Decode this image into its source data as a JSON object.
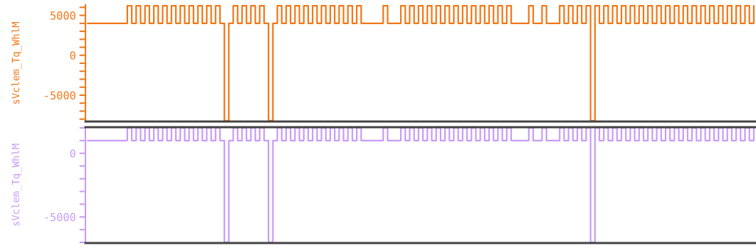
{
  "chart_data": [
    {
      "type": "step",
      "ylabel": "sVclem_Tq_WhlM",
      "tick_labels": "y",
      "grid": false,
      "legend": false,
      "categories": [
        null,
        null,
        null,
        null,
        null,
        null,
        null,
        null,
        null,
        null,
        null,
        null,
        null,
        null,
        null,
        null,
        null,
        null,
        null,
        null,
        null,
        null,
        null,
        null,
        null,
        null,
        null,
        null,
        null,
        null,
        null,
        null,
        null,
        null,
        null,
        null,
        null,
        null,
        null,
        null,
        null,
        null,
        null,
        null,
        null,
        null,
        null,
        null,
        null,
        null,
        null,
        null,
        null,
        null,
        null,
        null,
        null,
        null,
        null,
        null,
        null,
        null,
        null,
        null,
        null,
        null,
        null,
        null,
        null,
        null,
        null,
        null,
        null,
        null,
        null,
        null,
        null,
        null,
        null,
        null,
        null,
        null,
        null,
        null,
        null,
        null,
        null,
        null,
        null,
        null,
        null,
        null,
        null,
        null,
        null,
        null,
        null,
        null,
        null,
        null,
        null,
        null,
        null,
        null,
        null,
        null,
        null,
        null,
        null,
        null,
        null,
        null,
        null,
        null,
        null,
        null,
        null,
        null,
        null,
        null,
        null,
        null,
        null,
        null,
        null,
        null,
        null,
        null,
        null,
        null,
        null,
        null,
        null,
        null,
        null,
        null,
        null,
        null,
        null,
        null,
        null,
        null,
        null,
        null,
        null,
        null,
        null,
        null,
        null,
        null,
        null,
        null
      ],
      "ylim": [
        -8300,
        6300
      ],
      "yticks": [
        {
          "value": 6000,
          "label": null
        },
        5000,
        {
          "value": 4000,
          "label": null
        },
        {
          "value": 3000,
          "label": null
        },
        {
          "value": 2000,
          "label": null
        },
        {
          "value": 1000,
          "label": null
        },
        0,
        {
          "value": -1000,
          "label": null
        },
        {
          "value": -2000,
          "label": null
        },
        {
          "value": -3000,
          "label": null
        },
        {
          "value": -4000,
          "label": null
        },
        -5000,
        {
          "value": -6000,
          "label": null
        },
        {
          "value": -7000,
          "label": null
        },
        {
          "value": -8000,
          "label": null
        }
      ],
      "series": [
        {
          "color": "#f07818",
          "values": [
            4000,
            4000,
            4000,
            4000,
            4000,
            4000,
            4000,
            4000,
            4000,
            6200,
            4000,
            6200,
            4000,
            6200,
            4000,
            6200,
            4000,
            6200,
            4000,
            6200,
            4000,
            6200,
            4000,
            6200,
            4000,
            6200,
            4000,
            6200,
            4000,
            6200,
            4000,
            -8200,
            4000,
            6200,
            4000,
            6200,
            4000,
            6200,
            4000,
            6200,
            4000,
            -8200,
            4000,
            6200,
            4000,
            6200,
            4000,
            6200,
            4000,
            6200,
            4000,
            6200,
            4000,
            6200,
            4000,
            6200,
            4000,
            6200,
            4000,
            6200,
            4000,
            6200,
            4000,
            4000,
            4000,
            4000,
            4000,
            6200,
            4000,
            4000,
            4000,
            6200,
            4000,
            6200,
            4000,
            6200,
            4000,
            6200,
            4000,
            6200,
            4000,
            6200,
            4000,
            6200,
            4000,
            6200,
            4000,
            6200,
            4000,
            6200,
            4000,
            6200,
            4000,
            6200,
            4000,
            6200,
            4000,
            4000,
            4000,
            4000,
            6200,
            4000,
            4000,
            6200,
            4000,
            4000,
            4000,
            6200,
            4000,
            6200,
            4000,
            6200,
            4000,
            6200,
            -8200,
            6200,
            4000,
            6200,
            4000,
            6200,
            4000,
            6200,
            4000,
            6200,
            4000,
            6200,
            4000,
            6200,
            4000,
            6200,
            4000,
            6200,
            4000,
            6200,
            4000,
            6200,
            4000,
            6200,
            4000,
            6200,
            4000,
            6200,
            4000,
            6200,
            4000,
            6200,
            4000,
            6200,
            4000,
            6200,
            4000,
            6200
          ]
        }
      ]
    },
    {
      "type": "step",
      "ylabel": "sVclem_Tq_WhlM",
      "tick_labels": "y",
      "grid": false,
      "legend": false,
      "categories": [
        null,
        null,
        null,
        null,
        null,
        null,
        null,
        null,
        null,
        null,
        null,
        null,
        null,
        null,
        null,
        null,
        null,
        null,
        null,
        null,
        null,
        null,
        null,
        null,
        null,
        null,
        null,
        null,
        null,
        null,
        null,
        null,
        null,
        null,
        null,
        null,
        null,
        null,
        null,
        null,
        null,
        null,
        null,
        null,
        null,
        null,
        null,
        null,
        null,
        null,
        null,
        null,
        null,
        null,
        null,
        null,
        null,
        null,
        null,
        null,
        null,
        null,
        null,
        null,
        null,
        null,
        null,
        null,
        null,
        null,
        null,
        null,
        null,
        null,
        null,
        null,
        null,
        null,
        null,
        null,
        null,
        null,
        null,
        null,
        null,
        null,
        null,
        null,
        null,
        null,
        null,
        null,
        null,
        null,
        null,
        null,
        null,
        null,
        null,
        null,
        null,
        null,
        null,
        null,
        null,
        null,
        null,
        null,
        null,
        null,
        null,
        null,
        null,
        null,
        null,
        null,
        null,
        null,
        null,
        null,
        null,
        null,
        null,
        null,
        null,
        null,
        null,
        null,
        null,
        null,
        null,
        null,
        null,
        null,
        null,
        null,
        null,
        null,
        null,
        null,
        null,
        null,
        null,
        null,
        null,
        null,
        null,
        null,
        null,
        null,
        null,
        null
      ],
      "ylim": [
        -7050,
        2050
      ],
      "yticks": [
        {
          "value": 2000,
          "label": null
        },
        {
          "value": 1000,
          "label": null
        },
        0,
        {
          "value": -1000,
          "label": null
        },
        {
          "value": -2000,
          "label": null
        },
        {
          "value": -3000,
          "label": null
        },
        {
          "value": -4000,
          "label": null
        },
        -5000,
        {
          "value": -6000,
          "label": null
        },
        {
          "value": -7000,
          "label": null
        }
      ],
      "series": [
        {
          "color": "#c89cf8",
          "values": [
            1000,
            1000,
            1000,
            1000,
            1000,
            1000,
            1000,
            1000,
            1000,
            2000,
            1000,
            2000,
            1000,
            2000,
            1000,
            2000,
            1000,
            2000,
            1000,
            2000,
            1000,
            2000,
            1000,
            2000,
            1000,
            2000,
            1000,
            2000,
            1000,
            2000,
            1000,
            -7000,
            1000,
            2000,
            1000,
            2000,
            1000,
            2000,
            1000,
            2000,
            1000,
            -7000,
            1000,
            2000,
            1000,
            2000,
            1000,
            2000,
            1000,
            2000,
            1000,
            2000,
            1000,
            2000,
            1000,
            2000,
            1000,
            2000,
            1000,
            2000,
            1000,
            2000,
            1000,
            1000,
            1000,
            1000,
            1000,
            2000,
            1000,
            1000,
            1000,
            2000,
            1000,
            2000,
            1000,
            2000,
            1000,
            2000,
            1000,
            2000,
            1000,
            2000,
            1000,
            2000,
            1000,
            2000,
            1000,
            2000,
            1000,
            2000,
            1000,
            2000,
            1000,
            2000,
            1000,
            2000,
            1000,
            1000,
            1000,
            1000,
            2000,
            1000,
            1000,
            2000,
            1000,
            1000,
            1000,
            2000,
            1000,
            2000,
            1000,
            2000,
            1000,
            2000,
            -7000,
            2000,
            1000,
            2000,
            1000,
            2000,
            1000,
            2000,
            1000,
            2000,
            1000,
            2000,
            1000,
            2000,
            1000,
            2000,
            1000,
            2000,
            1000,
            2000,
            1000,
            2000,
            1000,
            2000,
            1000,
            2000,
            1000,
            2000,
            1000,
            2000,
            1000,
            2000,
            1000,
            2000,
            1000,
            2000,
            1000,
            2000
          ]
        }
      ]
    }
  ]
}
